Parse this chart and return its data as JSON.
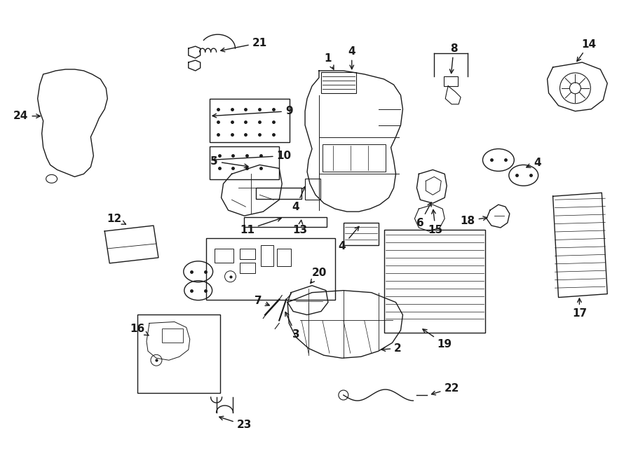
{
  "bg_color": "#ffffff",
  "line_color": "#1a1a1a",
  "fig_width": 9.0,
  "fig_height": 6.61,
  "dpi": 100,
  "label_fontsize": 11,
  "label_fontweight": "bold"
}
